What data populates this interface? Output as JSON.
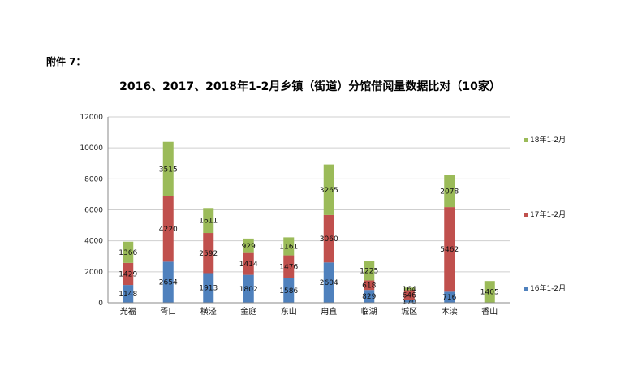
{
  "attachment_label": "附件 7：",
  "chart_data": {
    "type": "bar",
    "stacked": true,
    "title": "2016、2017、2018年1-2月乡镇（街道）分馆借阅量数据比对（10家）",
    "xlabel": "",
    "ylabel": "",
    "ylim": [
      0,
      12000
    ],
    "yticks": [
      0,
      2000,
      4000,
      6000,
      8000,
      10000,
      12000
    ],
    "grid": true,
    "legend_position": "right",
    "categories": [
      "光福",
      "胥口",
      "横泾",
      "金庭",
      "东山",
      "甪直",
      "临湖",
      "城区",
      "木渎",
      "香山"
    ],
    "series": [
      {
        "name": "16年1-2月",
        "color": "#4f81bd",
        "values": [
          1148,
          2654,
          1913,
          1802,
          1586,
          2604,
          829,
          170,
          716,
          0
        ]
      },
      {
        "name": "17年1-2月",
        "color": "#c0504d",
        "values": [
          1429,
          4220,
          2592,
          1414,
          1476,
          3060,
          618,
          646,
          5462,
          0
        ]
      },
      {
        "name": "18年1-2月",
        "color": "#9bbb59",
        "values": [
          1366,
          3515,
          1611,
          929,
          1161,
          3265,
          1225,
          164,
          2078,
          1405
        ]
      }
    ]
  }
}
